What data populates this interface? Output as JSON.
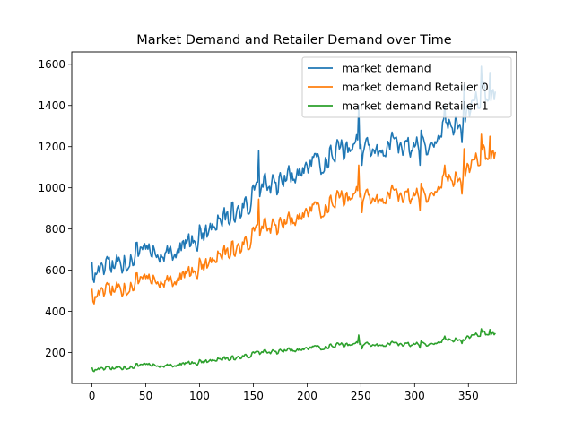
{
  "chart_data": {
    "type": "line",
    "title": "Market Demand and Retailer Demand over Time",
    "xlabel": "",
    "ylabel": "",
    "xlim": [
      -18.8,
      394.8
    ],
    "ylim": [
      50,
      1660
    ],
    "xticks": [
      0,
      50,
      100,
      150,
      200,
      250,
      300,
      350
    ],
    "yticks": [
      200,
      400,
      600,
      800,
      1000,
      1200,
      1400,
      1600
    ],
    "grid": false,
    "legend_position": "top-right",
    "n_points": 376,
    "series": [
      {
        "name": "market demand",
        "color": "#1f77b4",
        "anchors": [
          [
            0,
            600
          ],
          [
            10,
            600
          ],
          [
            20,
            630
          ],
          [
            30,
            650
          ],
          [
            40,
            680
          ],
          [
            50,
            690
          ],
          [
            60,
            670
          ],
          [
            70,
            700
          ],
          [
            80,
            720
          ],
          [
            90,
            740
          ],
          [
            100,
            770
          ],
          [
            110,
            800
          ],
          [
            120,
            850
          ],
          [
            130,
            890
          ],
          [
            140,
            900
          ],
          [
            150,
            950
          ],
          [
            160,
            1000
          ],
          [
            170,
            1000
          ],
          [
            180,
            1040
          ],
          [
            190,
            1080
          ],
          [
            200,
            1110
          ],
          [
            210,
            1100
          ],
          [
            220,
            1150
          ],
          [
            230,
            1160
          ],
          [
            240,
            1200
          ],
          [
            250,
            1230
          ],
          [
            260,
            1170
          ],
          [
            270,
            1200
          ],
          [
            280,
            1240
          ],
          [
            290,
            1180
          ],
          [
            300,
            1230
          ],
          [
            310,
            1200
          ],
          [
            320,
            1260
          ],
          [
            330,
            1300
          ],
          [
            340,
            1320
          ],
          [
            350,
            1380
          ],
          [
            360,
            1440
          ],
          [
            375,
            1470
          ]
        ],
        "amplitude": 55,
        "spikes": [
          [
            155,
            1180
          ],
          [
            248,
            1400
          ],
          [
            328,
            1400
          ],
          [
            346,
            1500
          ],
          [
            362,
            1590
          ],
          [
            370,
            1560
          ]
        ],
        "dips": [
          [
            251,
            1110
          ],
          [
            305,
            1110
          ],
          [
            344,
            1220
          ]
        ]
      },
      {
        "name": "market demand Retailer 0",
        "color": "#ff7f0e",
        "anchors": [
          [
            0,
            480
          ],
          [
            10,
            490
          ],
          [
            20,
            510
          ],
          [
            30,
            520
          ],
          [
            40,
            545
          ],
          [
            50,
            550
          ],
          [
            60,
            540
          ],
          [
            70,
            560
          ],
          [
            80,
            575
          ],
          [
            90,
            590
          ],
          [
            100,
            620
          ],
          [
            110,
            640
          ],
          [
            120,
            680
          ],
          [
            130,
            710
          ],
          [
            140,
            720
          ],
          [
            150,
            760
          ],
          [
            160,
            800
          ],
          [
            170,
            800
          ],
          [
            180,
            830
          ],
          [
            190,
            860
          ],
          [
            200,
            890
          ],
          [
            210,
            880
          ],
          [
            220,
            920
          ],
          [
            230,
            930
          ],
          [
            240,
            960
          ],
          [
            250,
            985
          ],
          [
            260,
            935
          ],
          [
            270,
            960
          ],
          [
            280,
            990
          ],
          [
            290,
            945
          ],
          [
            300,
            985
          ],
          [
            310,
            960
          ],
          [
            320,
            1010
          ],
          [
            330,
            1040
          ],
          [
            340,
            1055
          ],
          [
            350,
            1100
          ],
          [
            360,
            1150
          ],
          [
            375,
            1175
          ]
        ],
        "amplitude": 42,
        "spikes": [
          [
            155,
            945
          ],
          [
            248,
            1110
          ],
          [
            328,
            1110
          ],
          [
            346,
            1190
          ],
          [
            362,
            1260
          ],
          [
            370,
            1250
          ]
        ],
        "dips": [
          [
            251,
            880
          ],
          [
            305,
            890
          ],
          [
            344,
            970
          ]
        ]
      },
      {
        "name": "market demand Retailer 1",
        "color": "#2ca02c",
        "anchors": [
          [
            0,
            120
          ],
          [
            10,
            120
          ],
          [
            20,
            125
          ],
          [
            30,
            130
          ],
          [
            40,
            135
          ],
          [
            50,
            140
          ],
          [
            60,
            135
          ],
          [
            70,
            140
          ],
          [
            80,
            145
          ],
          [
            90,
            150
          ],
          [
            100,
            155
          ],
          [
            110,
            160
          ],
          [
            120,
            170
          ],
          [
            130,
            175
          ],
          [
            140,
            180
          ],
          [
            150,
            190
          ],
          [
            160,
            200
          ],
          [
            170,
            200
          ],
          [
            180,
            210
          ],
          [
            190,
            215
          ],
          [
            200,
            222
          ],
          [
            210,
            220
          ],
          [
            220,
            230
          ],
          [
            230,
            232
          ],
          [
            240,
            240
          ],
          [
            250,
            247
          ],
          [
            260,
            234
          ],
          [
            270,
            240
          ],
          [
            280,
            248
          ],
          [
            290,
            236
          ],
          [
            300,
            246
          ],
          [
            310,
            240
          ],
          [
            320,
            252
          ],
          [
            330,
            260
          ],
          [
            340,
            265
          ],
          [
            350,
            276
          ],
          [
            360,
            290
          ],
          [
            375,
            295
          ]
        ],
        "amplitude": 11,
        "spikes": [
          [
            248,
            285
          ],
          [
            328,
            280
          ],
          [
            362,
            315
          ],
          [
            370,
            312
          ]
        ],
        "dips": [
          [
            251,
            218
          ],
          [
            305,
            222
          ],
          [
            344,
            244
          ]
        ]
      }
    ]
  }
}
